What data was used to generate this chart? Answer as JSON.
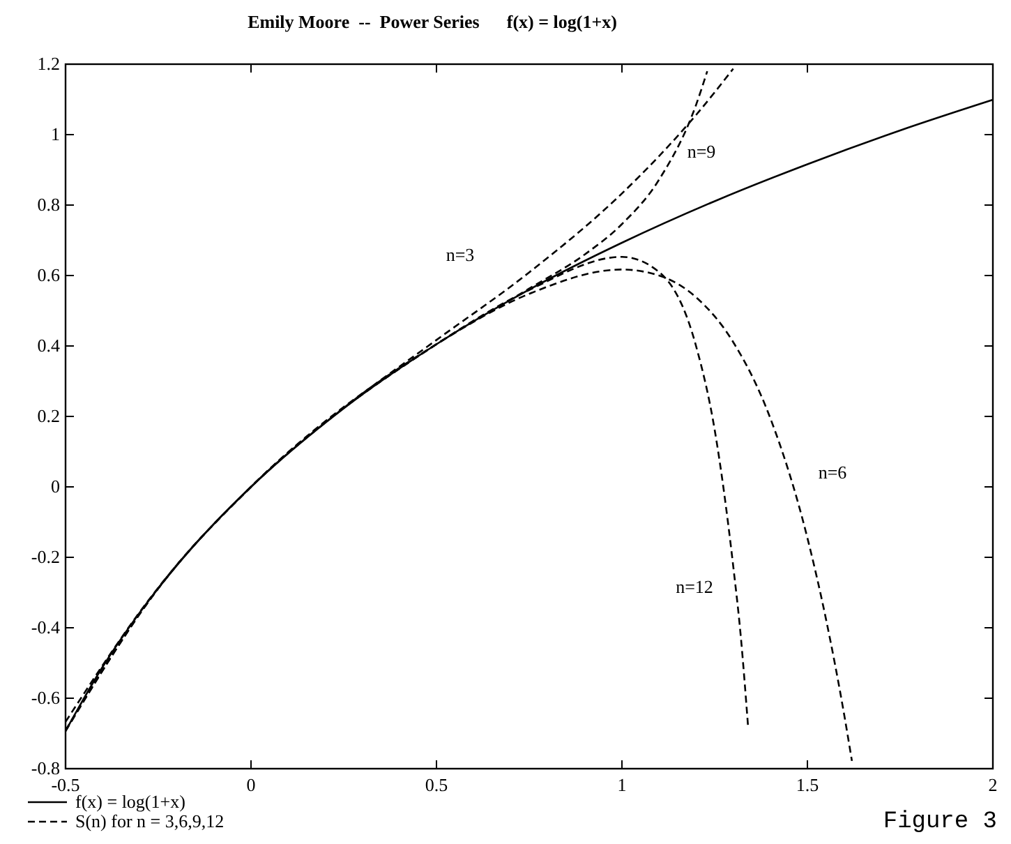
{
  "chart_data": {
    "type": "line",
    "title": "Emily Moore  --  Power Series      f(x) = log(1+x)",
    "xlim": [
      -0.5,
      2
    ],
    "ylim": [
      -0.8,
      1.2
    ],
    "xticks": [
      -0.5,
      0,
      0.5,
      1,
      1.5,
      2
    ],
    "yticks": [
      -0.8,
      -0.6,
      -0.4,
      -0.2,
      0,
      0.2,
      0.4,
      0.6,
      0.8,
      1,
      1.2
    ],
    "grid": false,
    "legend": "bottom left",
    "marker": "none",
    "series": [
      {
        "name": "f(x) = log(1+x)",
        "color": "#000000",
        "line_style": "solid",
        "x": [
          -0.5,
          -0.4,
          -0.3,
          -0.2,
          -0.1,
          0,
          0.25,
          0.5,
          0.75,
          1,
          1.25,
          1.5,
          1.75,
          2
        ],
        "values": [
          -0.693,
          -0.511,
          -0.357,
          -0.223,
          -0.105,
          0,
          0.223,
          0.405,
          0.56,
          0.693,
          0.811,
          0.916,
          1.012,
          1.099
        ]
      },
      {
        "name": "S(n) for n = 3,6,9,12",
        "color": "#000000",
        "line_style": "dashed",
        "x": [
          -0.5,
          -0.25,
          0,
          0.25,
          0.5,
          0.75,
          1,
          1.1,
          1.2,
          1.3
        ],
        "values": [
          -0.667,
          -0.286,
          0,
          0.224,
          0.417,
          0.609,
          0.833,
          0.939,
          1.056,
          1.187
        ]
      },
      {
        "color": "#000000",
        "line_style": "dashed",
        "x": [
          -0.5,
          -0.25,
          0,
          0.5,
          0.75,
          1,
          1.1,
          1.2,
          1.3,
          1.4,
          1.5,
          1.55,
          1.6,
          1.62
        ],
        "values": [
          -0.691,
          -0.288,
          0,
          0.405,
          0.548,
          0.617,
          0.6,
          0.538,
          0.411,
          0.195,
          -0.145,
          -0.375,
          -0.652,
          -0.778
        ]
      },
      {
        "color": "#000000",
        "line_style": "dashed",
        "x": [
          -0.5,
          -0.25,
          0,
          0.5,
          0.75,
          0.9,
          1,
          1.1,
          1.2,
          1.23
        ],
        "values": [
          -0.693,
          -0.288,
          0,
          0.405,
          0.563,
          0.66,
          0.746,
          0.872,
          1.085,
          1.18
        ]
      },
      {
        "color": "#000000",
        "line_style": "dashed",
        "x": [
          -0.5,
          -0.25,
          0,
          0.5,
          0.75,
          1,
          1.1,
          1.2,
          1.25,
          1.3,
          1.32,
          1.34
        ],
        "values": [
          -0.693,
          -0.288,
          0,
          0.405,
          0.559,
          0.653,
          0.61,
          0.399,
          0.162,
          -0.225,
          -0.42,
          -0.68
        ]
      }
    ],
    "annotations": [
      "n=3",
      "n=9",
      "n=6",
      "n=12",
      "Figure 3"
    ]
  }
}
